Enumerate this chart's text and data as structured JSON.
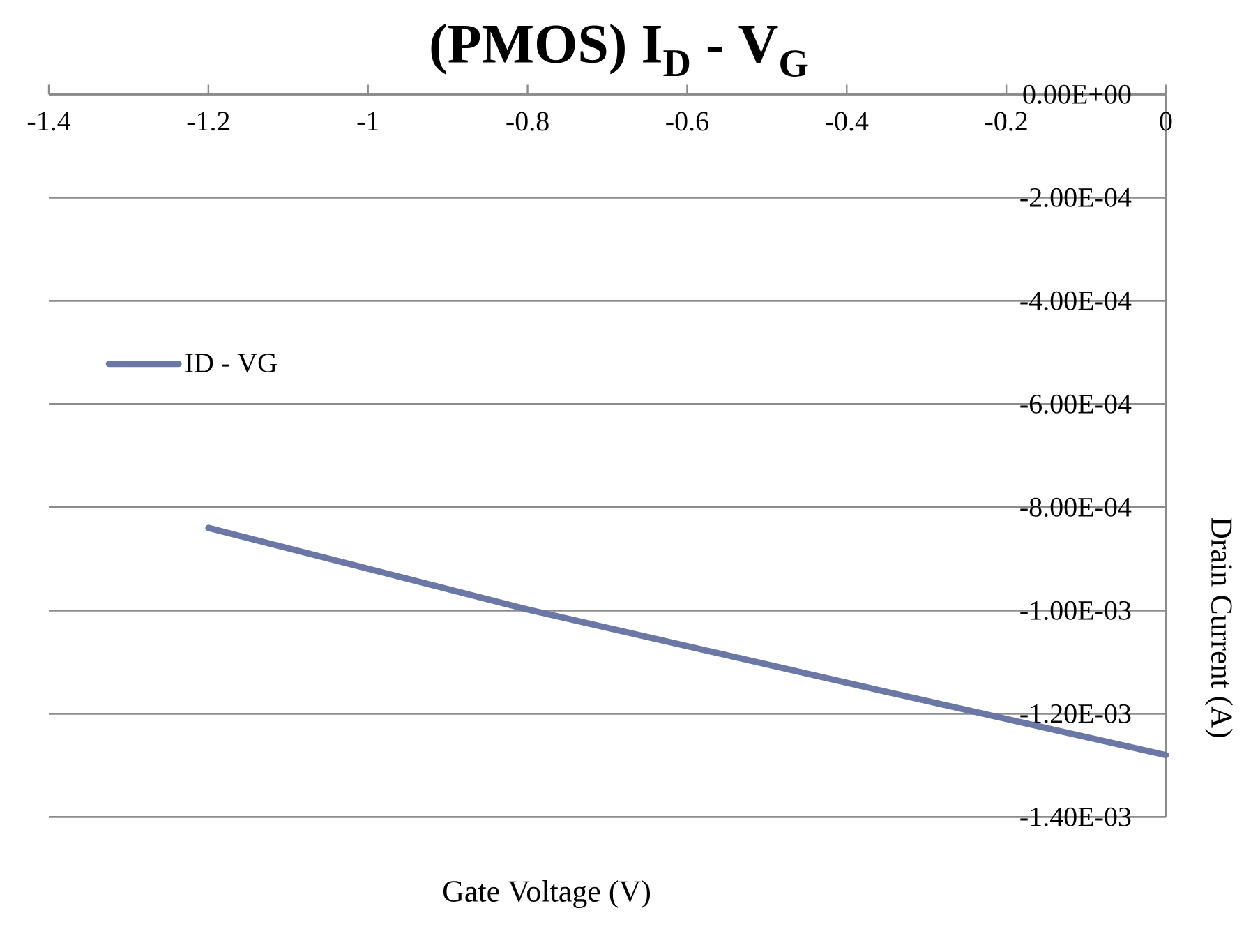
{
  "chart_data": {
    "type": "line",
    "title": "(PMOS) I$_{D}$ - V$_{G}$",
    "xlabel": "Gate Voltage (V)",
    "ylabel": "Drain Current (A)",
    "x": [
      -1.2,
      -0.8,
      -0.4,
      0
    ],
    "series": [
      {
        "name": "ID - VG",
        "color": "#6b77a5",
        "values": [
          -0.00084,
          -0.000998,
          -0.00114,
          -0.00128
        ]
      }
    ],
    "xlim": [
      -1.4,
      0
    ],
    "xticks": [
      -1.4,
      -1.2,
      -1,
      -0.8,
      -0.6,
      -0.4,
      -0.2,
      0
    ],
    "ylim": [
      -0.0014,
      0
    ],
    "yticks": [
      {
        "value": 0,
        "label": "0.00E+00"
      },
      {
        "value": -0.0002,
        "label": "-2.00E-04"
      },
      {
        "value": -0.0004,
        "label": "-4.00E-04"
      },
      {
        "value": -0.0006,
        "label": "-6.00E-04"
      },
      {
        "value": -0.0008,
        "label": "-8.00E-04"
      },
      {
        "value": -0.001,
        "label": "-1.00E-03"
      },
      {
        "value": -0.0012,
        "label": "-1.20E-03"
      },
      {
        "value": -0.0014,
        "label": "-1.40E-03"
      }
    ],
    "grid": "y",
    "legend": "left",
    "marker": "none",
    "line_style": "solid"
  }
}
